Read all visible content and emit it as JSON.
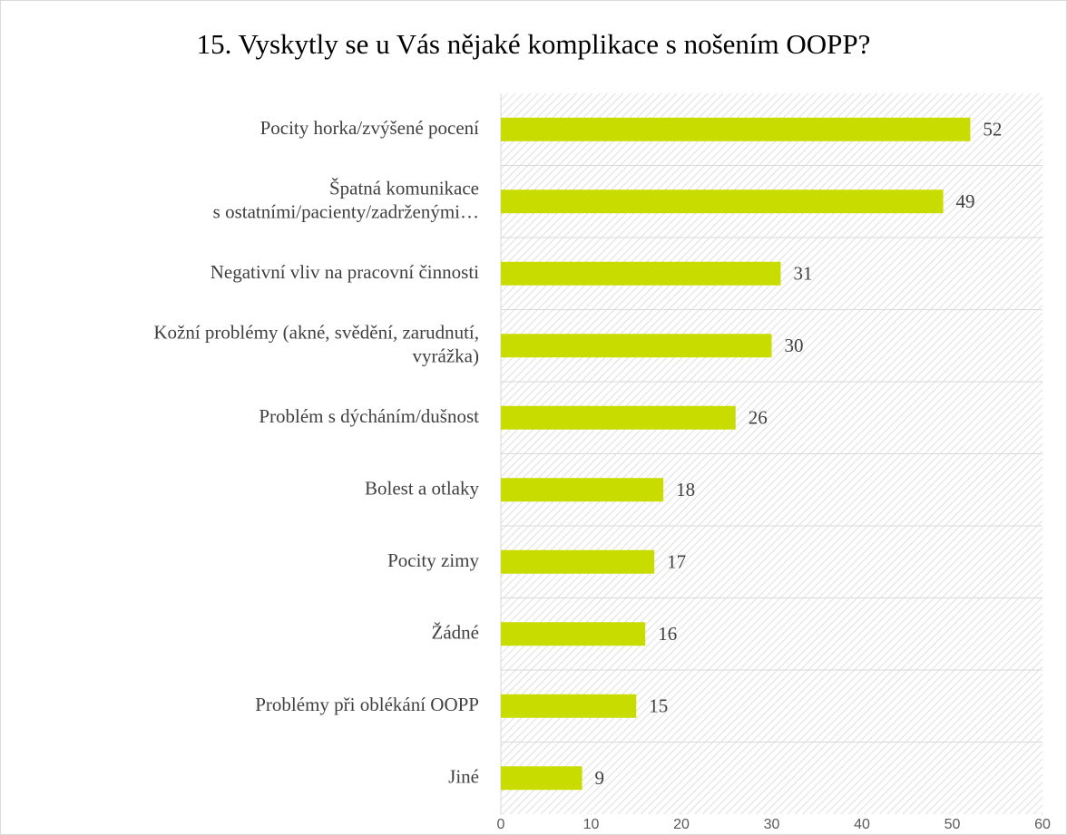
{
  "chart_data": {
    "type": "barh",
    "title": "15. Vyskytly se u Vás nějaké komplikace s nošením OOPP?",
    "categories": [
      "Pocity horka/zvýšené pocení",
      "Špatná komunikace\ns ostatními/pacienty/zadrženými…",
      "Negativní vliv na pracovní činnosti",
      "Kožní problémy (akné, svědění, zarudnutí,\nvyrážka)",
      "Problém s dýcháním/dušnost",
      "Bolest a otlaky",
      "Pocity zimy",
      "Žádné",
      "Problémy při oblékání OOPP",
      "Jiné"
    ],
    "values": [
      52,
      49,
      31,
      30,
      26,
      18,
      17,
      16,
      15,
      9
    ],
    "color": "#c8dc00",
    "xlim": [
      0,
      60
    ],
    "xticks": [
      0,
      10,
      20,
      30,
      40,
      50,
      60
    ]
  }
}
